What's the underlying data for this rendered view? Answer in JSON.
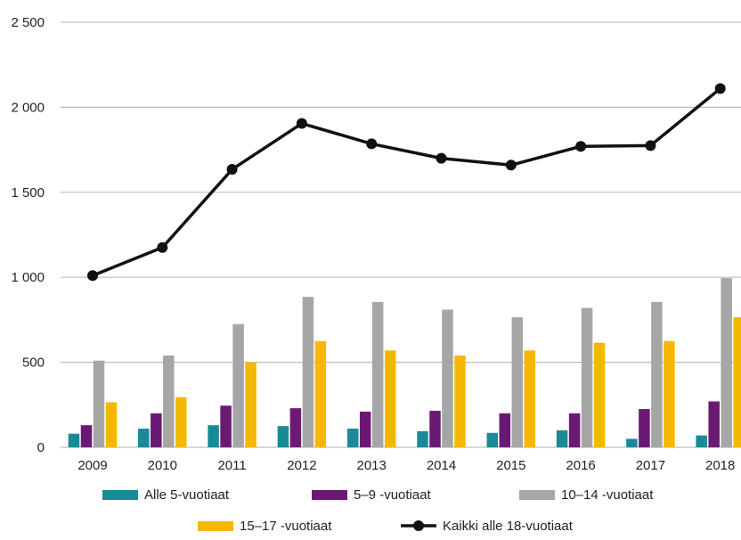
{
  "chart_data": {
    "type": "bar",
    "title": "",
    "xlabel": "",
    "ylabel": "",
    "ylim": [
      0,
      2500
    ],
    "yticks": [
      {
        "value": 0,
        "label": "0"
      },
      {
        "value": 500,
        "label": "500"
      },
      {
        "value": 1000,
        "label": "1 000"
      },
      {
        "value": 1500,
        "label": "1 500"
      },
      {
        "value": 2000,
        "label": "2 000"
      },
      {
        "value": 2500,
        "label": "2 500"
      }
    ],
    "grid": true,
    "legend_position": "bottom",
    "categories": [
      "2009",
      "2010",
      "2011",
      "2012",
      "2013",
      "2014",
      "2015",
      "2016",
      "2017",
      "2018"
    ],
    "series": [
      {
        "name": "Alle 5-vuotiaat",
        "type": "bar",
        "color": "#1a8a99",
        "values": [
          80,
          110,
          130,
          125,
          110,
          95,
          85,
          100,
          50,
          70
        ]
      },
      {
        "name": "5–9 -vuotiaat",
        "type": "bar",
        "color": "#6b1a74",
        "values": [
          130,
          200,
          245,
          230,
          210,
          215,
          200,
          200,
          225,
          270
        ]
      },
      {
        "name": "10–14 -vuotiaat",
        "type": "bar",
        "color": "#a6a6a6",
        "values": [
          510,
          540,
          725,
          885,
          855,
          810,
          765,
          820,
          855,
          995
        ]
      },
      {
        "name": "15–17 -vuotiaat",
        "type": "bar",
        "color": "#f5b800",
        "values": [
          265,
          295,
          500,
          625,
          570,
          540,
          570,
          615,
          625,
          765
        ]
      },
      {
        "name": "Kaikki alle 18-vuotiaat",
        "type": "line",
        "color": "#111111",
        "values": [
          1010,
          1175,
          1635,
          1905,
          1785,
          1700,
          1660,
          1770,
          1775,
          2110
        ]
      }
    ]
  }
}
